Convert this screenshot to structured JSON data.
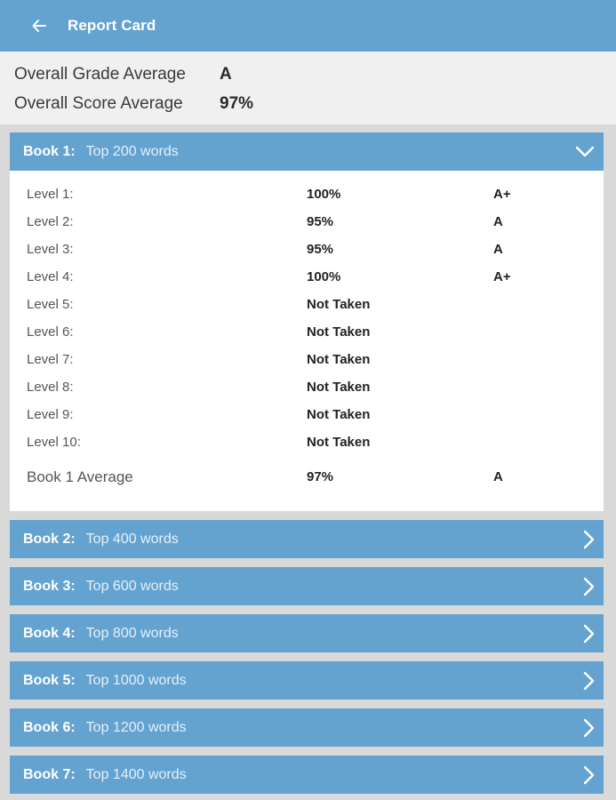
{
  "appbar": {
    "title": "Report Card",
    "back_icon": "arrow-left-icon",
    "color": "#64a3d0"
  },
  "summary": {
    "grade_label": "Overall Grade Average",
    "grade_value": "A",
    "score_label": "Overall Score Average",
    "score_value": "97%"
  },
  "books": [
    {
      "name": "Book 1:",
      "subtitle": "Top 200 words",
      "expanded": true,
      "levels": [
        {
          "label": "Level 1:",
          "score": "100%",
          "grade": "A+"
        },
        {
          "label": "Level 2:",
          "score": "95%",
          "grade": "A"
        },
        {
          "label": "Level 3:",
          "score": "95%",
          "grade": "A"
        },
        {
          "label": "Level 4:",
          "score": "100%",
          "grade": "A+"
        },
        {
          "label": "Level 5:",
          "score": "Not Taken",
          "grade": ""
        },
        {
          "label": "Level 6:",
          "score": "Not Taken",
          "grade": ""
        },
        {
          "label": "Level 7:",
          "score": "Not Taken",
          "grade": ""
        },
        {
          "label": "Level 8:",
          "score": "Not Taken",
          "grade": ""
        },
        {
          "label": "Level 9:",
          "score": "Not Taken",
          "grade": ""
        },
        {
          "label": "Level 10:",
          "score": "Not Taken",
          "grade": ""
        }
      ],
      "average": {
        "label": "Book 1 Average",
        "score": "97%",
        "grade": "A"
      }
    },
    {
      "name": "Book 2:",
      "subtitle": "Top 400 words",
      "expanded": false
    },
    {
      "name": "Book 3:",
      "subtitle": "Top 600 words",
      "expanded": false
    },
    {
      "name": "Book 4:",
      "subtitle": "Top 800 words",
      "expanded": false
    },
    {
      "name": "Book 5:",
      "subtitle": "Top 1000 words",
      "expanded": false
    },
    {
      "name": "Book 6:",
      "subtitle": "Top 1200 words",
      "expanded": false
    },
    {
      "name": "Book 7:",
      "subtitle": "Top 1400 words",
      "expanded": false
    }
  ]
}
